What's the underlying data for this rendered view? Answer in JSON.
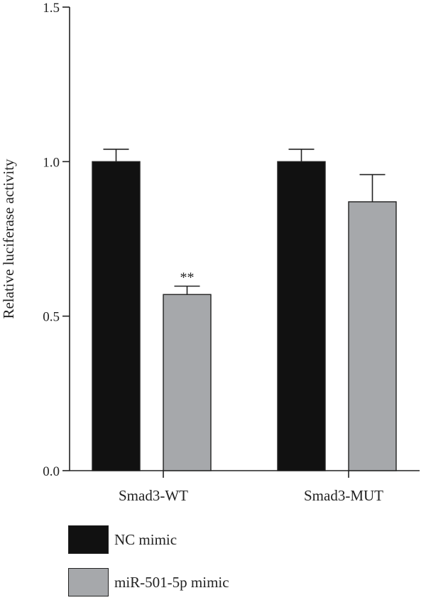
{
  "chart_data": {
    "type": "bar",
    "categories": [
      "Smad3-WT",
      "Smad3-MUT"
    ],
    "series": [
      {
        "name": "NC mimic",
        "values": [
          1.0,
          1.0
        ],
        "errors": [
          0.04,
          0.04
        ],
        "color": "#111111"
      },
      {
        "name": "miR-501-5p mimic",
        "values": [
          0.57,
          0.87
        ],
        "errors": [
          0.027,
          0.088
        ],
        "color": "#a6a8ab"
      }
    ],
    "annotations": [
      {
        "series": 1,
        "category": 0,
        "text": "**"
      }
    ],
    "ylabel": "Relative luciferase activity",
    "xlabel": "",
    "title": "",
    "ylim": [
      0,
      1.5
    ],
    "yticks": [
      "0.0",
      "0.5",
      "1.0",
      "1.5"
    ],
    "legend_position": "bottom-left",
    "grid": false
  }
}
